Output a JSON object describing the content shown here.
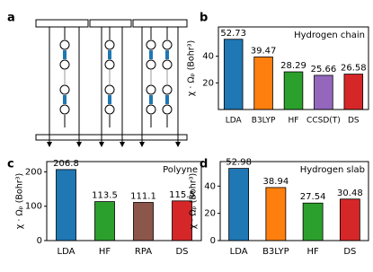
{
  "diagram_label": "a",
  "chart_data": [
    {
      "type": "bar",
      "panel_label": "b",
      "title": "Hydrogen chain",
      "y_label": "χ · Ωₚ (Bohr³)",
      "categories": [
        "LDA",
        "B3LYP",
        "HF",
        "CCSD(T)",
        "DS"
      ],
      "values": [
        52.73,
        39.47,
        28.29,
        25.66,
        26.58
      ],
      "colors": [
        "#1f77b4",
        "#ff7f0e",
        "#2ca02c",
        "#9467bd",
        "#d62728"
      ],
      "ylim": [
        0,
        62
      ],
      "yticks": [
        20,
        40
      ]
    },
    {
      "type": "bar",
      "panel_label": "c",
      "title": "Polyyne",
      "y_label": "χ · Ωₚ (Bohr³)",
      "categories": [
        "LDA",
        "HF",
        "RPA",
        "DS"
      ],
      "values": [
        206.8,
        113.5,
        111.1,
        115.5
      ],
      "colors": [
        "#1f77b4",
        "#2ca02c",
        "#8c564b",
        "#d62728"
      ],
      "ylim": [
        0,
        230
      ],
      "yticks": [
        0,
        100,
        200
      ]
    },
    {
      "type": "bar",
      "panel_label": "d",
      "title": "Hydrogen slab",
      "y_label": "χ · Ωₚ (Bohr³)",
      "categories": [
        "LDA",
        "B3LYP",
        "HF",
        "DS"
      ],
      "values": [
        52.98,
        38.94,
        27.54,
        30.48
      ],
      "colors": [
        "#1f77b4",
        "#ff7f0e",
        "#2ca02c",
        "#d62728"
      ],
      "ylim": [
        0,
        58
      ],
      "yticks": [
        0,
        20,
        40
      ]
    }
  ]
}
